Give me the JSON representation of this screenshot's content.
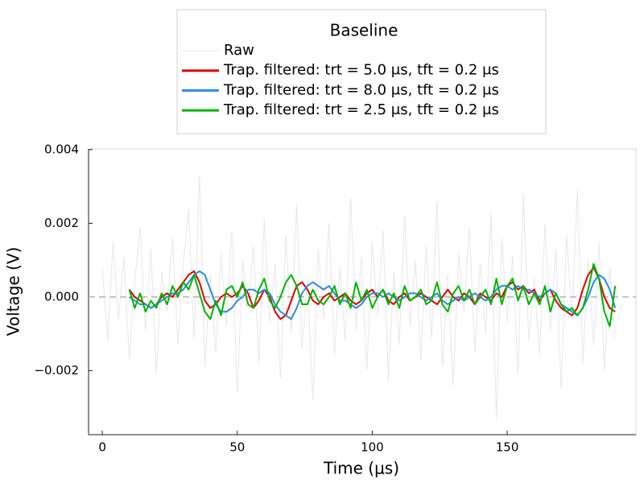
{
  "chart_data": {
    "type": "line",
    "legend_title": "Baseline",
    "legend": "outertop",
    "xlabel": "Time (μs)",
    "ylabel": "Voltage (V)",
    "xlim": [
      -5.1,
      197.7
    ],
    "ylim": [
      -0.00374,
      0.00402
    ],
    "xticks": [
      0,
      50,
      100,
      150
    ],
    "yticks": [
      {
        "value": -0.002,
        "label": "−0.002"
      },
      {
        "value": 0,
        "label": "0.000"
      },
      {
        "value": 0.002,
        "label": "0.002"
      },
      {
        "value": 0.004,
        "label": "0.004"
      }
    ],
    "grid": false,
    "hline": 0,
    "hline_color": "#b3b3b3",
    "series": [
      {
        "name": "Raw",
        "color": "#e8e8e8",
        "width": 1,
        "x": [
          0,
          2,
          4,
          6,
          8,
          10,
          12,
          14,
          16,
          18,
          20,
          22,
          24,
          26,
          28,
          30,
          32,
          34,
          36,
          38,
          40,
          42,
          44,
          46,
          48,
          50,
          52,
          54,
          56,
          58,
          60,
          62,
          64,
          66,
          68,
          70,
          72,
          74,
          76,
          78,
          80,
          82,
          84,
          86,
          88,
          90,
          92,
          94,
          96,
          98,
          100,
          102,
          104,
          106,
          108,
          110,
          112,
          114,
          116,
          118,
          120,
          122,
          124,
          126,
          128,
          130,
          132,
          134,
          136,
          138,
          140,
          142,
          144,
          146,
          148,
          150,
          152,
          154,
          156,
          158,
          160,
          162,
          164,
          166,
          168,
          170,
          172,
          174,
          176,
          178,
          180,
          182,
          184,
          186,
          188,
          190
        ],
        "values": [
          0.0008,
          -0.0012,
          0.0015,
          -0.0006,
          0.0011,
          -0.0017,
          0.0004,
          0.0019,
          -0.0009,
          0.0013,
          -0.0021,
          0.0007,
          -0.0004,
          0.0016,
          -0.0013,
          0.0009,
          0.0024,
          -0.0011,
          0.0033,
          -0.0019,
          0.0006,
          -0.0015,
          0.0012,
          -0.0008,
          0.0018,
          -0.0026,
          0.001,
          -0.0003,
          0.0014,
          -0.0018,
          0.0021,
          -0.0007,
          0.0009,
          -0.0022,
          0.0017,
          -0.001,
          0.0025,
          -0.0014,
          0.0005,
          -0.0028,
          0.0013,
          -0.0006,
          0.002,
          -0.0016,
          0.0008,
          -0.0012,
          0.0027,
          -0.0009,
          0.0011,
          -0.002,
          0.0015,
          -0.0005,
          0.0018,
          -0.0023,
          0.0007,
          -0.0013,
          0.0022,
          -0.0008,
          0.001,
          -0.0017,
          0.0014,
          -0.0011,
          0.0026,
          -0.0019,
          0.0006,
          -0.0024,
          0.0012,
          -0.0004,
          0.0019,
          -0.0015,
          0.0009,
          -0.001,
          0.0023,
          -0.0033,
          0.0016,
          -0.0007,
          0.0011,
          -0.0021,
          0.0028,
          -0.0012,
          0.0005,
          -0.0016,
          0.002,
          -0.0009,
          0.0013,
          -0.0025,
          0.0017,
          -0.0006,
          0.0029,
          -0.0018,
          0.001,
          -0.0013,
          0.0015,
          -0.002,
          0.0008,
          -0.0011
        ]
      },
      {
        "name": "Trap. filtered: trt = 5.0 μs, tft = 0.2 μs",
        "color": "#e00000",
        "width": 2,
        "x": [
          10,
          12,
          14,
          16,
          18,
          20,
          22,
          24,
          26,
          28,
          30,
          32,
          34,
          36,
          38,
          40,
          42,
          44,
          46,
          48,
          50,
          52,
          54,
          56,
          58,
          60,
          62,
          64,
          66,
          68,
          70,
          72,
          74,
          76,
          78,
          80,
          82,
          84,
          86,
          88,
          90,
          92,
          94,
          96,
          98,
          100,
          102,
          104,
          106,
          108,
          110,
          112,
          114,
          116,
          118,
          120,
          122,
          124,
          126,
          128,
          130,
          132,
          134,
          136,
          138,
          140,
          142,
          144,
          146,
          148,
          150,
          152,
          154,
          156,
          158,
          160,
          162,
          164,
          166,
          168,
          170,
          172,
          174,
          176,
          178,
          180,
          182,
          184,
          186,
          188,
          190
        ],
        "values": [
          0.0002,
          0.0,
          -0.0001,
          -0.0002,
          -0.0003,
          -0.0002,
          0.0,
          0.0001,
          0.0,
          0.0002,
          0.0004,
          0.0006,
          0.0007,
          0.0004,
          -0.0001,
          -0.0003,
          -0.0002,
          0.0,
          0.0001,
          0.0,
          0.0001,
          0.0003,
          0.0001,
          -0.0003,
          -0.0001,
          0.0002,
          0.0,
          -0.0004,
          -0.0006,
          -0.0005,
          -0.0001,
          0.0003,
          0.0004,
          0.0002,
          -0.0001,
          -0.0002,
          0.0,
          0.0001,
          -0.0001,
          0.0,
          0.0001,
          -0.0001,
          -0.0002,
          -0.0001,
          0.0001,
          0.0002,
          0.0,
          0.0002,
          -0.0001,
          -0.0002,
          0.0,
          0.0001,
          -0.0001,
          0.0,
          0.0001,
          0.0,
          -0.0001,
          -0.0002,
          0.0,
          0.0002,
          0.0,
          -0.0001,
          0.0001,
          0.0,
          -0.0002,
          0.0001,
          0.0,
          -0.0001,
          0.0001,
          0.0,
          0.0003,
          0.0004,
          0.0002,
          0.0003,
          0.0001,
          0.0002,
          -0.0001,
          0.0001,
          0.0002,
          -0.0001,
          -0.0003,
          -0.0004,
          -0.0005,
          -0.0003,
          0.0002,
          0.0006,
          0.0008,
          0.0005,
          0.0,
          -0.0003,
          -0.0004
        ]
      },
      {
        "name": "Trap. filtered: trt = 8.0 μs, tft = 0.2 μs",
        "color": "#2a8ae8",
        "width": 2,
        "x": [
          10,
          12,
          14,
          16,
          18,
          20,
          22,
          24,
          26,
          28,
          30,
          32,
          34,
          36,
          38,
          40,
          42,
          44,
          46,
          48,
          50,
          52,
          54,
          56,
          58,
          60,
          62,
          64,
          66,
          68,
          70,
          72,
          74,
          76,
          78,
          80,
          82,
          84,
          86,
          88,
          90,
          92,
          94,
          96,
          98,
          100,
          102,
          104,
          106,
          108,
          110,
          112,
          114,
          116,
          118,
          120,
          122,
          124,
          126,
          128,
          130,
          132,
          134,
          136,
          138,
          140,
          142,
          144,
          146,
          148,
          150,
          152,
          154,
          156,
          158,
          160,
          162,
          164,
          166,
          168,
          170,
          172,
          174,
          176,
          178,
          180,
          182,
          184,
          186,
          188,
          190
        ],
        "values": [
          0.0,
          -0.0001,
          -0.0002,
          -0.0002,
          -0.0003,
          -0.0002,
          -0.0001,
          0.0,
          0.0001,
          0.0001,
          0.0002,
          0.0004,
          0.0006,
          0.0007,
          0.0006,
          0.0002,
          -0.0002,
          -0.0004,
          -0.0004,
          -0.0003,
          -0.0001,
          0.0,
          0.0002,
          0.0002,
          0.0001,
          0.0002,
          0.0001,
          -0.0002,
          -0.0004,
          -0.0005,
          -0.0006,
          -0.0003,
          0.0001,
          0.0003,
          0.0004,
          0.0003,
          0.0002,
          0.0003,
          0.0001,
          -0.0001,
          -0.0001,
          -0.0002,
          -0.0003,
          -0.0002,
          0.0,
          0.0001,
          0.0001,
          0.0,
          0.0001,
          0.0,
          -0.0001,
          0.0,
          0.0001,
          0.0001,
          0.0,
          -0.0001,
          0.0,
          0.0001,
          -0.0001,
          -0.0002,
          -0.0001,
          0.0,
          -0.0001,
          0.0,
          0.0001,
          0.0,
          -0.0001,
          0.0,
          0.0002,
          0.0003,
          0.0003,
          0.0002,
          0.0003,
          0.0002,
          0.0002,
          0.0001,
          0.0,
          0.0001,
          0.0002,
          0.0001,
          -0.0002,
          -0.0003,
          -0.0004,
          -0.0005,
          -0.0003,
          0.0,
          0.0004,
          0.0006,
          0.0005,
          0.0002,
          -0.0003
        ]
      },
      {
        "name": "Trap. filtered: trt = 2.5 μs, tft = 0.2 μs",
        "color": "#00b400",
        "width": 2,
        "x": [
          10,
          12,
          14,
          16,
          18,
          20,
          22,
          24,
          26,
          28,
          30,
          32,
          34,
          36,
          38,
          40,
          42,
          44,
          46,
          48,
          50,
          52,
          54,
          56,
          58,
          60,
          62,
          64,
          66,
          68,
          70,
          72,
          74,
          76,
          78,
          80,
          82,
          84,
          86,
          88,
          90,
          92,
          94,
          96,
          98,
          100,
          102,
          104,
          106,
          108,
          110,
          112,
          114,
          116,
          118,
          120,
          122,
          124,
          126,
          128,
          130,
          132,
          134,
          136,
          138,
          140,
          142,
          144,
          146,
          148,
          150,
          152,
          154,
          156,
          158,
          160,
          162,
          164,
          166,
          168,
          170,
          172,
          174,
          176,
          178,
          180,
          182,
          184,
          186,
          188,
          190
        ],
        "values": [
          0.0002,
          -0.0003,
          0.0001,
          -0.0004,
          -0.0001,
          -0.0003,
          0.0001,
          -0.0002,
          0.0003,
          0.0,
          0.0004,
          0.0002,
          0.0006,
          0.0001,
          -0.0004,
          -0.0006,
          -0.0001,
          -0.0005,
          0.0002,
          0.0003,
          0.0,
          0.0004,
          -0.0002,
          -0.0003,
          0.0002,
          0.0005,
          -0.0001,
          -0.0003,
          0.0,
          0.0004,
          0.0006,
          0.0003,
          -0.0002,
          -0.0002,
          0.0002,
          -0.0001,
          -0.0002,
          0.0,
          0.0003,
          -0.0002,
          0.0001,
          -0.0003,
          0.0004,
          -0.0001,
          0.0002,
          -0.0003,
          0.0,
          0.0002,
          -0.0002,
          0.0001,
          -0.0003,
          0.0003,
          -0.0001,
          0.0,
          0.0002,
          -0.0002,
          -0.0001,
          0.0004,
          -0.0002,
          -0.0004,
          0.0001,
          0.0003,
          -0.0001,
          0.0002,
          -0.0002,
          0.0,
          0.0002,
          -0.0002,
          0.0005,
          -0.0002,
          0.0003,
          0.0005,
          -0.0001,
          0.0003,
          -0.0002,
          0.0001,
          -0.0002,
          0.0003,
          -0.0004,
          0.0001,
          -0.0002,
          -0.0004,
          -0.0003,
          -0.0005,
          -0.0003,
          0.0002,
          0.0009,
          0.0005,
          -0.0004,
          -0.0008,
          0.0003
        ]
      }
    ]
  }
}
